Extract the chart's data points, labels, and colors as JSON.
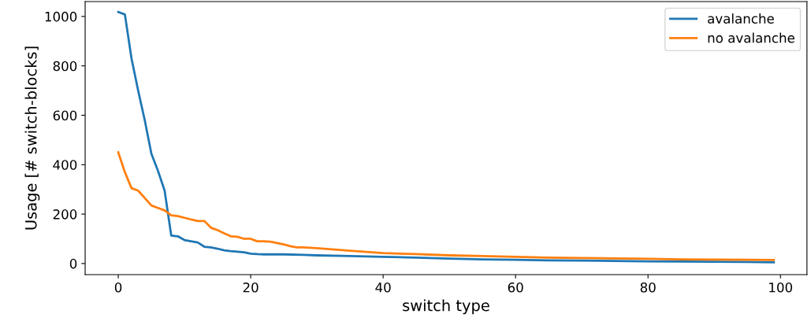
{
  "chart_data": {
    "type": "line",
    "xlabel": "switch type",
    "ylabel": "Usage [# switch-blocks]",
    "xlim": [
      -5,
      104
    ],
    "ylim": [
      -45,
      1060
    ],
    "xticks": [
      0,
      20,
      40,
      60,
      80,
      100
    ],
    "yticks": [
      0,
      200,
      400,
      600,
      800,
      1000
    ],
    "grid": false,
    "legend": "top right",
    "series": [
      {
        "name": "avalanche",
        "color": "#1f77b4",
        "x": [
          0,
          1,
          2,
          3,
          4,
          5,
          6,
          7,
          8,
          9,
          10,
          11,
          12,
          13,
          14,
          15,
          16,
          17,
          18,
          19,
          20,
          21,
          22,
          25,
          28,
          30,
          35,
          40,
          45,
          50,
          55,
          60,
          65,
          70,
          75,
          80,
          85,
          90,
          95,
          99
        ],
        "values": [
          1018,
          1008,
          830,
          700,
          580,
          445,
          375,
          295,
          113,
          110,
          95,
          90,
          85,
          68,
          65,
          60,
          53,
          50,
          48,
          45,
          40,
          38,
          37,
          37,
          35,
          33,
          30,
          27,
          24,
          20,
          17,
          15,
          13,
          12,
          10,
          9,
          8,
          7,
          6,
          5
        ]
      },
      {
        "name": "no avalanche",
        "color": "#ff7f0e",
        "x": [
          0,
          1,
          2,
          3,
          4,
          5,
          6,
          7,
          8,
          9,
          10,
          11,
          12,
          13,
          14,
          15,
          16,
          17,
          18,
          19,
          20,
          21,
          22,
          23,
          24,
          25,
          26,
          27,
          28,
          30,
          35,
          40,
          45,
          50,
          55,
          60,
          65,
          70,
          75,
          80,
          85,
          90,
          95,
          99
        ],
        "values": [
          450,
          370,
          305,
          295,
          265,
          235,
          225,
          215,
          195,
          192,
          185,
          178,
          172,
          172,
          145,
          135,
          122,
          110,
          108,
          100,
          100,
          90,
          90,
          88,
          83,
          77,
          70,
          65,
          65,
          62,
          52,
          42,
          38,
          33,
          30,
          27,
          24,
          22,
          21,
          19,
          17,
          16,
          15,
          14
        ]
      }
    ]
  }
}
